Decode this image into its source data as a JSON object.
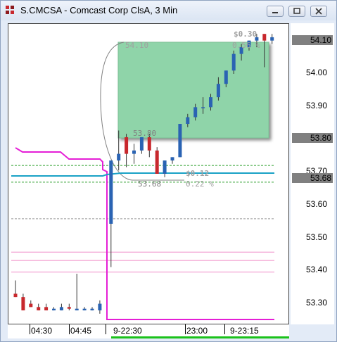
{
  "window": {
    "title": "S.CMCSA - Comcast Corp ClsA, 3 Min"
  },
  "overlay": {
    "top_label": "54.10",
    "top_change": "$0.30",
    "top_pct": "0.56 %",
    "mid_label": "53.80",
    "low_label": "53.68",
    "low_change": "$0.12",
    "low_pct": "0.22 %"
  },
  "price_axis": {
    "labels": [
      "54.00",
      "53.90",
      "53.70",
      "53.60",
      "53.50",
      "53.40",
      "53.30"
    ],
    "highlight": [
      "54.10",
      "53.80",
      "53.68"
    ]
  },
  "time_axis": {
    "labels": [
      "04:30",
      "04:45",
      "9-22:30",
      "23:00",
      "9-23:15"
    ]
  },
  "colors": {
    "up": "#2a63b3",
    "down": "#c8282d",
    "zone_fill": "#8fd4a9",
    "magenta": "#e51fd6",
    "teal": "#1aa2c6",
    "green_dashed": "#2fa02f",
    "pink": "#f08cc8"
  },
  "chart_data": {
    "type": "candlestick",
    "symbol": "S.CMCSA",
    "interval": "3 Min",
    "ylim": [
      53.24,
      54.14
    ],
    "candles": [
      {
        "o": 53.33,
        "h": 53.37,
        "l": 53.32,
        "c": 53.32
      },
      {
        "o": 53.32,
        "h": 53.33,
        "l": 53.28,
        "c": 53.28
      },
      {
        "o": 53.3,
        "h": 53.31,
        "l": 53.29,
        "c": 53.29
      },
      {
        "o": 53.29,
        "h": 53.3,
        "l": 53.28,
        "c": 53.28
      },
      {
        "o": 53.29,
        "h": 53.3,
        "l": 53.28,
        "c": 53.28
      },
      {
        "o": 53.28,
        "h": 53.29,
        "l": 53.28,
        "c": 53.285
      },
      {
        "o": 53.28,
        "h": 53.3,
        "l": 53.28,
        "c": 53.29
      },
      {
        "o": 53.29,
        "h": 53.3,
        "l": 53.28,
        "c": 53.285
      },
      {
        "o": 53.28,
        "h": 53.39,
        "l": 53.28,
        "c": 53.285
      },
      {
        "o": 53.28,
        "h": 53.29,
        "l": 53.28,
        "c": 53.285
      },
      {
        "o": 53.28,
        "h": 53.29,
        "l": 53.28,
        "c": 53.285
      },
      {
        "o": 53.28,
        "h": 53.31,
        "l": 53.27,
        "c": 53.3
      },
      {
        "o": 53.54,
        "h": 53.73,
        "l": 53.41,
        "c": 53.73
      },
      {
        "o": 53.73,
        "h": 53.82,
        "l": 53.7,
        "c": 53.75
      },
      {
        "o": 53.8,
        "h": 53.81,
        "l": 53.71,
        "c": 53.75
      },
      {
        "o": 53.75,
        "h": 53.78,
        "l": 53.72,
        "c": 53.76
      },
      {
        "o": 53.76,
        "h": 53.8,
        "l": 53.75,
        "c": 53.8
      },
      {
        "o": 53.8,
        "h": 53.81,
        "l": 53.74,
        "c": 53.76
      },
      {
        "o": 53.76,
        "h": 53.77,
        "l": 53.69,
        "c": 53.69
      },
      {
        "o": 53.69,
        "h": 53.73,
        "l": 53.68,
        "c": 53.73
      },
      {
        "o": 53.73,
        "h": 53.74,
        "l": 53.72,
        "c": 53.74
      },
      {
        "o": 53.74,
        "h": 53.84,
        "l": 53.74,
        "c": 53.84
      },
      {
        "o": 53.84,
        "h": 53.87,
        "l": 53.83,
        "c": 53.86
      },
      {
        "o": 53.86,
        "h": 53.9,
        "l": 53.85,
        "c": 53.89
      },
      {
        "o": 53.89,
        "h": 53.92,
        "l": 53.87,
        "c": 53.89
      },
      {
        "o": 53.89,
        "h": 53.93,
        "l": 53.88,
        "c": 53.92
      },
      {
        "o": 53.92,
        "h": 53.98,
        "l": 53.91,
        "c": 53.96
      },
      {
        "o": 53.96,
        "h": 54.0,
        "l": 53.95,
        "c": 54.0
      },
      {
        "o": 54.0,
        "h": 54.06,
        "l": 53.99,
        "c": 54.05
      },
      {
        "o": 54.05,
        "h": 54.08,
        "l": 54.03,
        "c": 54.07
      },
      {
        "o": 54.07,
        "h": 54.09,
        "l": 54.06,
        "c": 54.09
      },
      {
        "o": 54.09,
        "h": 54.11,
        "l": 54.07,
        "c": 54.1
      },
      {
        "o": 54.11,
        "h": 54.11,
        "l": 54.01,
        "c": 54.09
      },
      {
        "o": 54.09,
        "h": 54.11,
        "l": 54.08,
        "c": 54.1
      }
    ],
    "hlines": [
      {
        "y": 53.715,
        "color": "green_dashed"
      },
      {
        "y": 53.665,
        "color": "green_dashed"
      },
      {
        "y": 53.555,
        "color": "gray"
      },
      {
        "y": 53.455,
        "color": "pink"
      },
      {
        "y": 53.43,
        "color": "pink"
      },
      {
        "y": 53.395,
        "color": "pink"
      }
    ]
  }
}
